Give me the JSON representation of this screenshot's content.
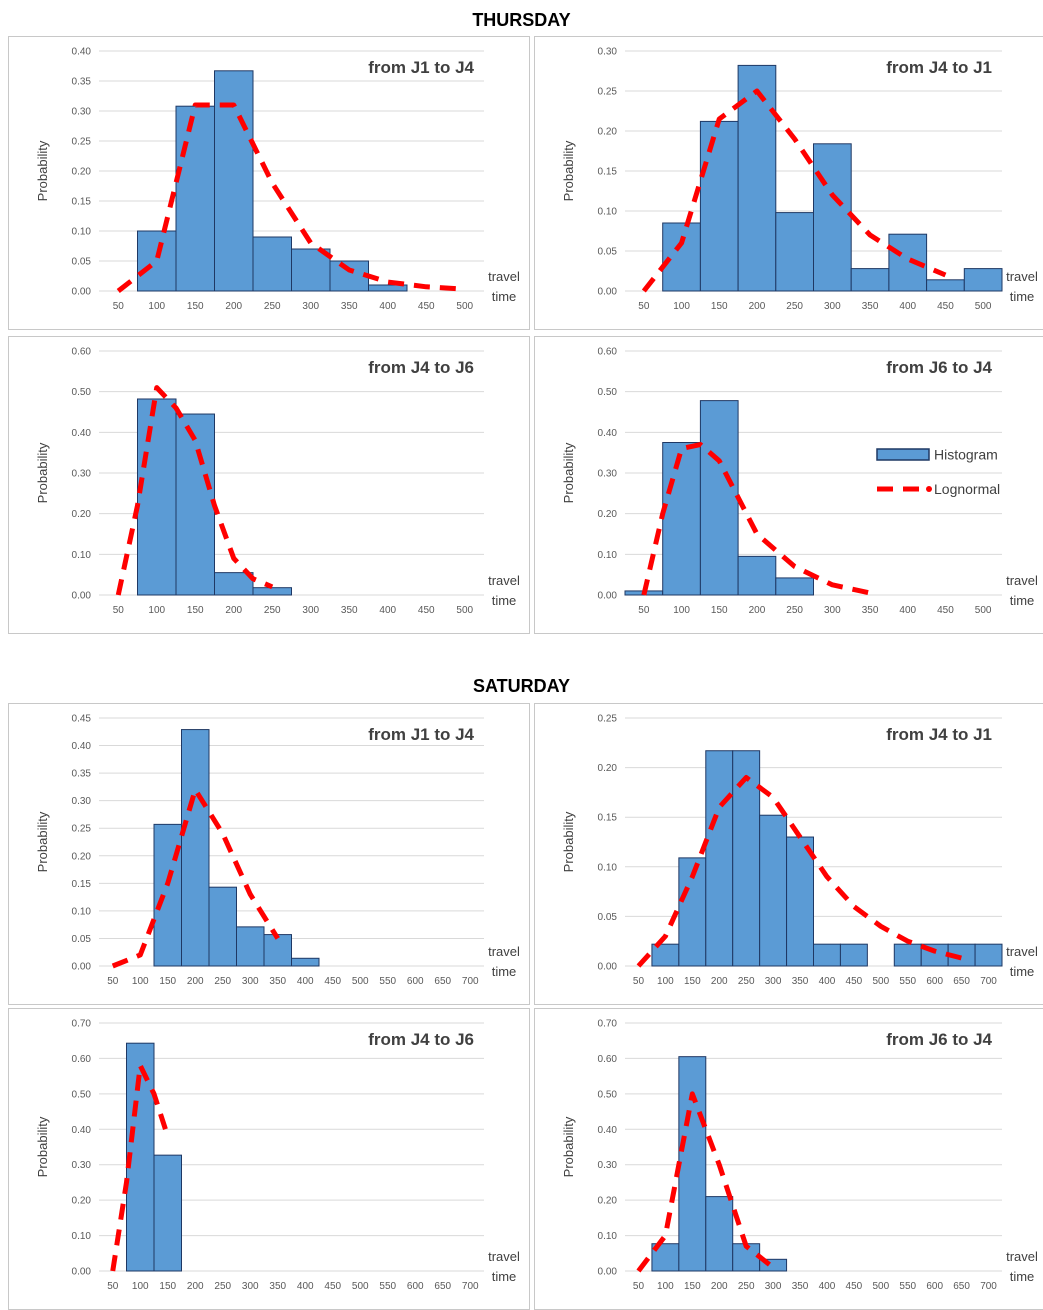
{
  "sections": [
    {
      "title": "THURSDAY"
    },
    {
      "title": "SATURDAY"
    }
  ],
  "colors": {
    "bar_fill": "#5b9bd5",
    "bar_stroke": "#1f3864",
    "curve": "#ff0000",
    "grid": "#d9d9d9"
  },
  "chart_data": [
    {
      "type": "bar",
      "title": "from J1 to J4",
      "ylabel": "Probability",
      "xlabel": [
        "travel",
        "time"
      ],
      "ylim": [
        0,
        0.4
      ],
      "yticks": [
        "0.00",
        "0.05",
        "0.10",
        "0.15",
        "0.20",
        "0.25",
        "0.30",
        "0.35",
        "0.40"
      ],
      "xlim": [
        25,
        525
      ],
      "xticks": [
        50,
        100,
        150,
        200,
        250,
        300,
        350,
        400,
        450,
        500
      ],
      "bars": [
        {
          "x": 100,
          "y": 0.1
        },
        {
          "x": 150,
          "y": 0.308
        },
        {
          "x": 200,
          "y": 0.367
        },
        {
          "x": 250,
          "y": 0.09
        },
        {
          "x": 300,
          "y": 0.07
        },
        {
          "x": 350,
          "y": 0.05
        },
        {
          "x": 400,
          "y": 0.01
        }
      ],
      "series": [
        {
          "name": "Lognormal",
          "x": [
            50,
            100,
            150,
            200,
            250,
            300,
            350,
            400,
            450,
            500
          ],
          "y": [
            0.0,
            0.05,
            0.31,
            0.31,
            0.18,
            0.08,
            0.035,
            0.015,
            0.007,
            0.003
          ]
        }
      ]
    },
    {
      "type": "bar",
      "title": "from J4 to J1",
      "ylabel": "Probability",
      "xlabel": [
        "travel",
        "time"
      ],
      "ylim": [
        0,
        0.3
      ],
      "yticks": [
        "0.00",
        "0.05",
        "0.10",
        "0.15",
        "0.20",
        "0.25",
        "0.30"
      ],
      "xlim": [
        25,
        525
      ],
      "xticks": [
        50,
        100,
        150,
        200,
        250,
        300,
        350,
        400,
        450,
        500
      ],
      "bars": [
        {
          "x": 100,
          "y": 0.085
        },
        {
          "x": 150,
          "y": 0.212
        },
        {
          "x": 200,
          "y": 0.282
        },
        {
          "x": 250,
          "y": 0.098
        },
        {
          "x": 300,
          "y": 0.184
        },
        {
          "x": 350,
          "y": 0.028
        },
        {
          "x": 400,
          "y": 0.071
        },
        {
          "x": 450,
          "y": 0.014
        },
        {
          "x": 500,
          "y": 0.028
        }
      ],
      "series": [
        {
          "name": "Lognormal",
          "x": [
            50,
            100,
            150,
            200,
            250,
            300,
            350,
            400,
            450
          ],
          "y": [
            0.0,
            0.06,
            0.215,
            0.25,
            0.19,
            0.12,
            0.07,
            0.04,
            0.02
          ]
        }
      ]
    },
    {
      "type": "bar",
      "title": "from J4 to J6",
      "ylabel": "Probability",
      "xlabel": [
        "travel",
        "time"
      ],
      "ylim": [
        0,
        0.6
      ],
      "yticks": [
        "0.00",
        "0.10",
        "0.20",
        "0.30",
        "0.40",
        "0.50",
        "0.60"
      ],
      "xlim": [
        25,
        525
      ],
      "xticks": [
        50,
        100,
        150,
        200,
        250,
        300,
        350,
        400,
        450,
        500
      ],
      "bars": [
        {
          "x": 100,
          "y": 0.482
        },
        {
          "x": 150,
          "y": 0.445
        },
        {
          "x": 200,
          "y": 0.055
        },
        {
          "x": 250,
          "y": 0.018
        }
      ],
      "series": [
        {
          "name": "Lognormal",
          "x": [
            50,
            75,
            100,
            125,
            150,
            175,
            200,
            225,
            250
          ],
          "y": [
            0.0,
            0.22,
            0.51,
            0.46,
            0.38,
            0.22,
            0.09,
            0.04,
            0.02
          ]
        }
      ]
    },
    {
      "type": "bar",
      "title": "from J6 to J4",
      "ylabel": "Probability",
      "xlabel": [
        "travel",
        "time"
      ],
      "ylim": [
        0,
        0.6
      ],
      "yticks": [
        "0.00",
        "0.10",
        "0.20",
        "0.30",
        "0.40",
        "0.50",
        "0.60"
      ],
      "xlim": [
        25,
        525
      ],
      "xticks": [
        50,
        100,
        150,
        200,
        250,
        300,
        350,
        400,
        450,
        500
      ],
      "bars": [
        {
          "x": 50,
          "y": 0.01
        },
        {
          "x": 100,
          "y": 0.375
        },
        {
          "x": 150,
          "y": 0.478
        },
        {
          "x": 200,
          "y": 0.095
        },
        {
          "x": 250,
          "y": 0.042
        }
      ],
      "series": [
        {
          "name": "Lognormal",
          "x": [
            50,
            75,
            100,
            125,
            150,
            175,
            200,
            250,
            300,
            350
          ],
          "y": [
            0.0,
            0.2,
            0.36,
            0.37,
            0.33,
            0.24,
            0.15,
            0.07,
            0.025,
            0.005
          ]
        }
      ],
      "legend": {
        "entries": [
          "Histogram",
          "Lognormal"
        ],
        "position": "right"
      }
    },
    {
      "type": "bar",
      "title": "from J1 to J4",
      "ylabel": "Probability",
      "xlabel": [
        "travel",
        "time"
      ],
      "ylim": [
        0,
        0.45
      ],
      "yticks": [
        "0.00",
        "0.05",
        "0.10",
        "0.15",
        "0.20",
        "0.25",
        "0.30",
        "0.35",
        "0.40",
        "0.45"
      ],
      "xlim": [
        25,
        725
      ],
      "xticks": [
        50,
        100,
        150,
        200,
        250,
        300,
        350,
        400,
        450,
        500,
        550,
        600,
        650,
        700
      ],
      "bars": [
        {
          "x": 150,
          "y": 0.257
        },
        {
          "x": 200,
          "y": 0.429
        },
        {
          "x": 250,
          "y": 0.143
        },
        {
          "x": 300,
          "y": 0.071
        },
        {
          "x": 350,
          "y": 0.057
        },
        {
          "x": 400,
          "y": 0.014
        }
      ],
      "series": [
        {
          "name": "Lognormal",
          "x": [
            50,
            100,
            150,
            200,
            250,
            300,
            350
          ],
          "y": [
            0.0,
            0.02,
            0.15,
            0.32,
            0.24,
            0.13,
            0.05
          ]
        }
      ]
    },
    {
      "type": "bar",
      "title": "from J4 to J1",
      "ylabel": "Probability",
      "xlabel": [
        "travel",
        "time"
      ],
      "ylim": [
        0,
        0.25
      ],
      "yticks": [
        "0.00",
        "0.05",
        "0.10",
        "0.15",
        "0.20",
        "0.25"
      ],
      "xlim": [
        25,
        725
      ],
      "xticks": [
        50,
        100,
        150,
        200,
        250,
        300,
        350,
        400,
        450,
        500,
        550,
        600,
        650,
        700
      ],
      "bars": [
        {
          "x": 100,
          "y": 0.022
        },
        {
          "x": 150,
          "y": 0.109
        },
        {
          "x": 200,
          "y": 0.217
        },
        {
          "x": 250,
          "y": 0.217
        },
        {
          "x": 300,
          "y": 0.152
        },
        {
          "x": 350,
          "y": 0.13
        },
        {
          "x": 400,
          "y": 0.022
        },
        {
          "x": 450,
          "y": 0.022
        },
        {
          "x": 550,
          "y": 0.022
        },
        {
          "x": 600,
          "y": 0.022
        },
        {
          "x": 650,
          "y": 0.022
        },
        {
          "x": 700,
          "y": 0.022
        }
      ],
      "series": [
        {
          "name": "Lognormal",
          "x": [
            50,
            100,
            150,
            200,
            250,
            300,
            350,
            400,
            450,
            500,
            550,
            600,
            650
          ],
          "y": [
            0.0,
            0.03,
            0.09,
            0.16,
            0.19,
            0.17,
            0.13,
            0.09,
            0.06,
            0.04,
            0.025,
            0.015,
            0.008
          ]
        }
      ]
    },
    {
      "type": "bar",
      "title": "from J4 to J6",
      "ylabel": "Probability",
      "xlabel": [
        "travel",
        "time"
      ],
      "ylim": [
        0,
        0.7
      ],
      "yticks": [
        "0.00",
        "0.10",
        "0.20",
        "0.30",
        "0.40",
        "0.50",
        "0.60",
        "0.70"
      ],
      "xlim": [
        25,
        725
      ],
      "xticks": [
        50,
        100,
        150,
        200,
        250,
        300,
        350,
        400,
        450,
        500,
        550,
        600,
        650,
        700
      ],
      "bars": [
        {
          "x": 100,
          "y": 0.643
        },
        {
          "x": 150,
          "y": 0.327
        }
      ],
      "series": [
        {
          "name": "Lognormal",
          "x": [
            50,
            75,
            100,
            125,
            150
          ],
          "y": [
            0.0,
            0.25,
            0.58,
            0.5,
            0.38
          ]
        }
      ]
    },
    {
      "type": "bar",
      "title": "from J6 to J4",
      "ylabel": "Probability",
      "xlabel": [
        "travel",
        "time"
      ],
      "ylim": [
        0,
        0.7
      ],
      "yticks": [
        "0.00",
        "0.10",
        "0.20",
        "0.30",
        "0.40",
        "0.50",
        "0.60",
        "0.70"
      ],
      "xlim": [
        25,
        725
      ],
      "xticks": [
        50,
        100,
        150,
        200,
        250,
        300,
        350,
        400,
        450,
        500,
        550,
        600,
        650,
        700
      ],
      "bars": [
        {
          "x": 100,
          "y": 0.077
        },
        {
          "x": 150,
          "y": 0.605
        },
        {
          "x": 200,
          "y": 0.21
        },
        {
          "x": 250,
          "y": 0.077
        },
        {
          "x": 300,
          "y": 0.033
        }
      ],
      "series": [
        {
          "name": "Lognormal",
          "x": [
            50,
            100,
            150,
            200,
            250,
            300
          ],
          "y": [
            0.0,
            0.1,
            0.5,
            0.3,
            0.07,
            0.01
          ]
        }
      ]
    }
  ]
}
